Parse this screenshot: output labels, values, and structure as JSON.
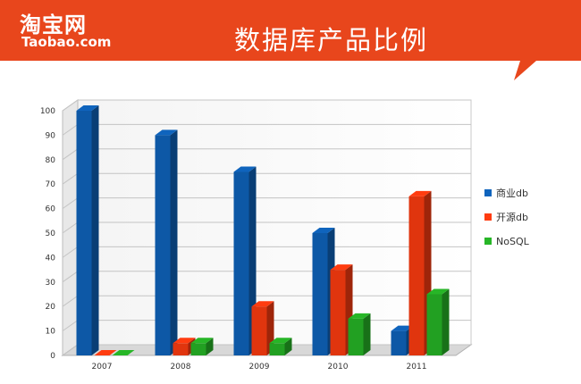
{
  "header": {
    "logo_cn": "淘宝网",
    "logo_en": "Taobao.com",
    "title": "数据库产品比例",
    "color": "#e8461c"
  },
  "chart_data": {
    "type": "bar",
    "categories": [
      "2007",
      "2008",
      "2009",
      "2010",
      "2011"
    ],
    "series": [
      {
        "name": "商业db",
        "values": [
          100,
          90,
          75,
          50,
          10
        ],
        "color": "#0f64bd"
      },
      {
        "name": "开源db",
        "values": [
          0,
          5,
          20,
          35,
          65
        ],
        "color": "#ff3c10"
      },
      {
        "name": "NoSQL",
        "values": [
          0,
          5,
          5,
          15,
          25
        ],
        "color": "#27b627"
      }
    ],
    "yticks": [
      "0",
      "10",
      "20",
      "30",
      "40",
      "50",
      "60",
      "70",
      "80",
      "90",
      "100"
    ],
    "ylim": [
      0,
      100
    ],
    "grid": true,
    "legend": "right"
  }
}
